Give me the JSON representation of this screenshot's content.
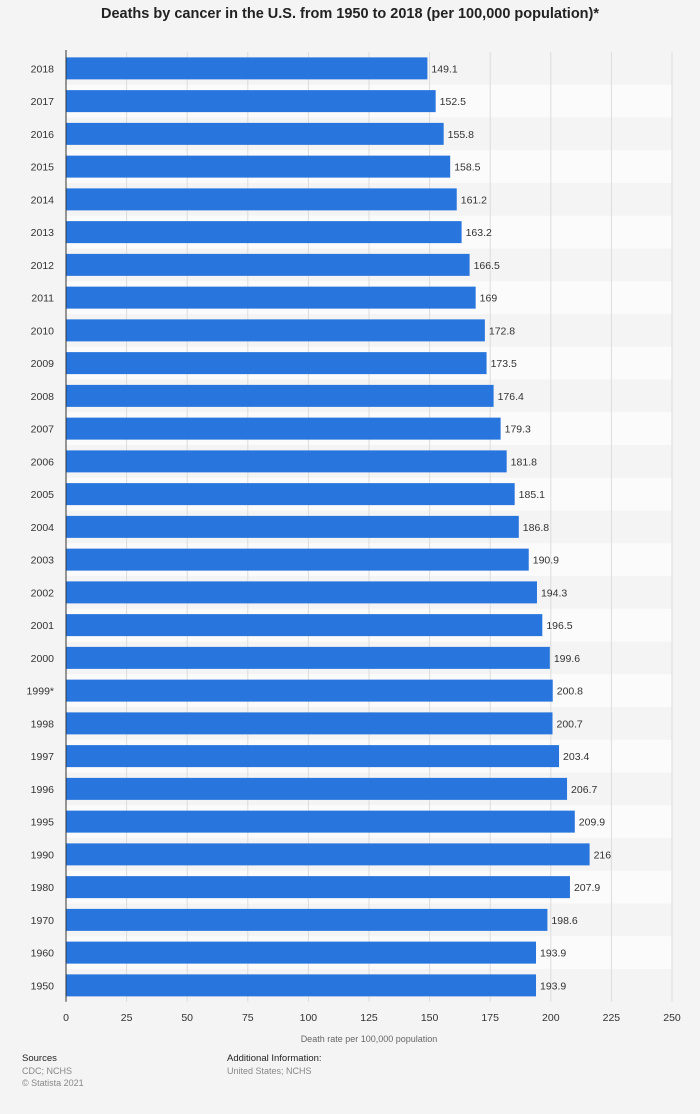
{
  "chart_data": {
    "type": "bar",
    "orientation": "horizontal",
    "title": "Deaths by cancer in the U.S. from 1950 to 2018 (per 100,000 population)*",
    "xlabel": "Death rate per 100,000 population",
    "ylabel": "",
    "xlim": [
      0,
      250
    ],
    "xticks": [
      0,
      25,
      50,
      75,
      100,
      125,
      150,
      175,
      200,
      225,
      250
    ],
    "grid": true,
    "bar_color": "#2876dd",
    "categories": [
      "2018",
      "2017",
      "2016",
      "2015",
      "2014",
      "2013",
      "2012",
      "2011",
      "2010",
      "2009",
      "2008",
      "2007",
      "2006",
      "2005",
      "2004",
      "2003",
      "2002",
      "2001",
      "2000",
      "1999*",
      "1998",
      "1997",
      "1996",
      "1995",
      "1990",
      "1980",
      "1970",
      "1960",
      "1950"
    ],
    "values": [
      149.1,
      152.5,
      155.8,
      158.5,
      161.2,
      163.2,
      166.5,
      169,
      172.8,
      173.5,
      176.4,
      179.3,
      181.8,
      185.1,
      186.8,
      190.9,
      194.3,
      196.5,
      199.6,
      200.8,
      200.7,
      203.4,
      206.7,
      209.9,
      216,
      207.9,
      198.6,
      193.9,
      193.9
    ]
  },
  "footer": {
    "sources_label": "Sources",
    "sources_line1": "CDC; NCHS",
    "sources_line2": "© Statista 2021",
    "additional_label": "Additional Information:",
    "additional_text": "United States; NCHS"
  }
}
